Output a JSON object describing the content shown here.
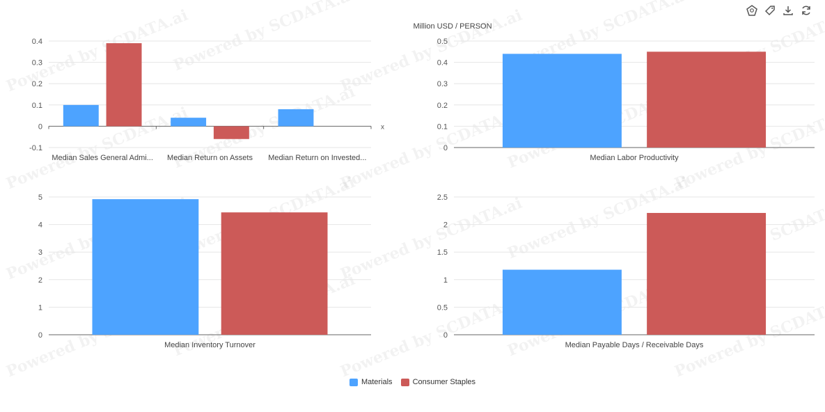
{
  "unit_label": "Million USD / PERSON",
  "watermark_text": "Powered by SCDATA.ai",
  "toolbar": {
    "icons": [
      "shape-tool-icon",
      "tag-icon",
      "download-icon",
      "refresh-icon"
    ]
  },
  "colors": {
    "materials": "#4da3ff",
    "consumer_staples": "#cc5a58",
    "axis": "#666666",
    "grid": "#e6e6e6"
  },
  "legend": [
    {
      "name": "Materials",
      "color": "#4da3ff"
    },
    {
      "name": "Consumer Staples",
      "color": "#cc5a58"
    }
  ],
  "chart_data": [
    {
      "type": "bar",
      "categories": [
        "Median Sales General Admi...",
        "Median Return on Assets",
        "Median Return on Invested..."
      ],
      "series": [
        {
          "name": "Materials",
          "values": [
            0.1,
            0.04,
            0.08
          ]
        },
        {
          "name": "Consumer Staples",
          "values": [
            0.39,
            -0.06,
            null
          ]
        }
      ],
      "ylim": [
        -0.1,
        0.4
      ],
      "yticks": [
        "0.4",
        "0.3",
        "0.2",
        "0.1",
        "0",
        "-0.1"
      ],
      "xlabel": "x",
      "grid": true
    },
    {
      "type": "bar",
      "categories": [
        "Median Labor Productivity"
      ],
      "series": [
        {
          "name": "Materials",
          "values": [
            0.44
          ]
        },
        {
          "name": "Consumer Staples",
          "values": [
            0.45
          ]
        }
      ],
      "ylim": [
        0,
        0.5
      ],
      "yticks": [
        "0.5",
        "0.4",
        "0.3",
        "0.2",
        "0.1",
        "0"
      ],
      "grid": true
    },
    {
      "type": "bar",
      "categories": [
        "Median Inventory Turnover"
      ],
      "series": [
        {
          "name": "Materials",
          "values": [
            4.92
          ]
        },
        {
          "name": "Consumer Staples",
          "values": [
            4.44
          ]
        }
      ],
      "ylim": [
        0,
        5
      ],
      "yticks": [
        "5",
        "4",
        "3",
        "2",
        "1",
        "0"
      ],
      "grid": true
    },
    {
      "type": "bar",
      "categories": [
        "Median Payable Days / Receivable Days"
      ],
      "series": [
        {
          "name": "Materials",
          "values": [
            1.18
          ]
        },
        {
          "name": "Consumer Staples",
          "values": [
            2.21
          ]
        }
      ],
      "ylim": [
        0,
        2.5
      ],
      "yticks": [
        "2.5",
        "2",
        "1.5",
        "1",
        "0.5",
        "0"
      ],
      "grid": true
    }
  ]
}
